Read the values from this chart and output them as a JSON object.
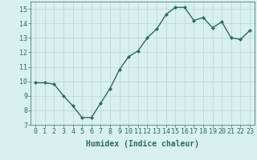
{
  "x": [
    0,
    1,
    2,
    3,
    4,
    5,
    6,
    7,
    8,
    9,
    10,
    11,
    12,
    13,
    14,
    15,
    16,
    17,
    18,
    19,
    20,
    21,
    22,
    23
  ],
  "y": [
    9.9,
    9.9,
    9.8,
    9.0,
    8.3,
    7.5,
    7.5,
    8.5,
    9.5,
    10.8,
    11.7,
    12.1,
    13.0,
    13.6,
    14.6,
    15.1,
    15.1,
    14.2,
    14.4,
    13.7,
    14.1,
    13.0,
    12.9,
    13.5
  ],
  "line_color": "#2e6b5e",
  "marker": "D",
  "marker_size": 2,
  "background_color": "#d8f0ee",
  "grid_color": "#b8d8d4",
  "tick_color": "#2e6b5e",
  "xlabel": "Humidex (Indice chaleur)",
  "xlim": [
    -0.5,
    23.5
  ],
  "ylim": [
    7,
    15.5
  ],
  "yticks": [
    7,
    8,
    9,
    10,
    11,
    12,
    13,
    14,
    15
  ],
  "xticks": [
    0,
    1,
    2,
    3,
    4,
    5,
    6,
    7,
    8,
    9,
    10,
    11,
    12,
    13,
    14,
    15,
    16,
    17,
    18,
    19,
    20,
    21,
    22,
    23
  ],
  "xlabel_fontsize": 7,
  "tick_fontsize": 6,
  "line_width": 1.0
}
